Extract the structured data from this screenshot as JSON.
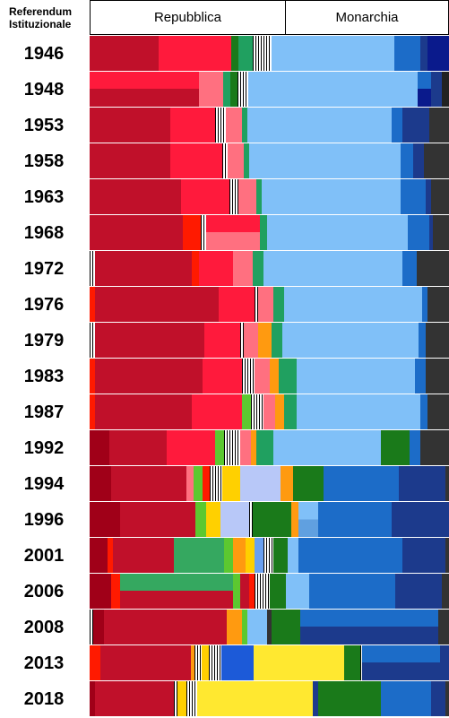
{
  "header": {
    "corner_line1": "Referendum",
    "corner_line2": "Istituzionale",
    "left_label": "Repubblica",
    "right_label": "Monarchia"
  },
  "chart_data": {
    "type": "bar",
    "orientation": "horizontal-stacked",
    "title": "",
    "xlim": [
      0,
      100
    ],
    "referendum_split_percent": 54.3,
    "categories": [
      "1946",
      "1948",
      "1953",
      "1958",
      "1963",
      "1968",
      "1972",
      "1976",
      "1979",
      "1983",
      "1987",
      "1992",
      "1994",
      "1996",
      "2001",
      "2006",
      "2008",
      "2013",
      "2018"
    ],
    "rows": [
      {
        "year": "1946",
        "top": [
          [
            19,
            "#c0102a"
          ],
          [
            20,
            "#ff1a3c"
          ],
          [
            2,
            "#1a7a1a"
          ],
          [
            4,
            "#20a060"
          ],
          [
            5,
            "stripe"
          ],
          [
            34,
            "#80c0f8"
          ],
          [
            7,
            "#1c6cc8"
          ],
          [
            2,
            "#1c3a8c"
          ],
          [
            6,
            "#0a1a8c"
          ]
        ]
      },
      {
        "year": "1948",
        "top": [
          [
            31,
            "#ff1a3c"
          ],
          [
            7,
            "#ff7080"
          ],
          [
            2,
            "#20a060"
          ],
          [
            2,
            "#1a7a1a"
          ],
          [
            3,
            "stripe"
          ],
          [
            48,
            "#80c0f8"
          ],
          [
            4,
            "#1c6cc8"
          ],
          [
            3,
            "#1c3a8c"
          ],
          [
            2,
            "#222222"
          ]
        ],
        "bottom": [
          [
            31,
            "#c0102a"
          ],
          [
            7,
            "#ff7080"
          ],
          [
            2,
            "#20a060"
          ],
          [
            2,
            "#1a7a1a"
          ],
          [
            3,
            "stripe"
          ],
          [
            48,
            "#80c0f8"
          ],
          [
            4,
            "#0a1a8c"
          ],
          [
            3,
            "#1c3a8c"
          ],
          [
            2,
            "#222222"
          ]
        ]
      },
      {
        "year": "1953",
        "top": [
          [
            22.5,
            "#c0102a"
          ],
          [
            12.5,
            "#ff1a3c"
          ],
          [
            3,
            "stripe"
          ],
          [
            4.5,
            "#ff7080"
          ],
          [
            1.5,
            "#20a060"
          ],
          [
            40,
            "#80c0f8"
          ],
          [
            3,
            "#1c6cc8"
          ],
          [
            7.5,
            "#1c3a8c"
          ],
          [
            5.5,
            "#333333"
          ]
        ]
      },
      {
        "year": "1958",
        "top": [
          [
            22.5,
            "#c0102a"
          ],
          [
            14.5,
            "#ff1a3c"
          ],
          [
            1.5,
            "stripe"
          ],
          [
            4.5,
            "#ff7080"
          ],
          [
            1.5,
            "#20a060"
          ],
          [
            42,
            "#80c0f8"
          ],
          [
            3.5,
            "#1c6cc8"
          ],
          [
            3,
            "#1c3a8c"
          ],
          [
            7,
            "#333333"
          ]
        ]
      },
      {
        "year": "1963",
        "top": [
          [
            25.5,
            "#c0102a"
          ],
          [
            13.5,
            "#ff1a3c"
          ],
          [
            2.5,
            "stripe"
          ],
          [
            5,
            "#ff7080"
          ],
          [
            1.5,
            "#20a060"
          ],
          [
            38.5,
            "#80c0f8"
          ],
          [
            7,
            "#1c6cc8"
          ],
          [
            1.5,
            "#1c3a8c"
          ],
          [
            5,
            "#333333"
          ]
        ]
      },
      {
        "year": "1968",
        "top": [
          [
            26,
            "#c0102a"
          ],
          [
            5,
            "#ff1a00"
          ],
          [
            1.5,
            "stripe"
          ],
          [
            15,
            "#ff1a3c"
          ],
          [
            2,
            "#20a060"
          ],
          [
            39,
            "#80c0f8"
          ],
          [
            6,
            "#1c6cc8"
          ],
          [
            1,
            "#1c3a8c"
          ],
          [
            4.5,
            "#333333"
          ]
        ],
        "bottom": [
          [
            26,
            "#c0102a"
          ],
          [
            5,
            "#ff1a00"
          ],
          [
            1.5,
            "stripe"
          ],
          [
            15,
            "#ff7080"
          ],
          [
            2,
            "#20a060"
          ],
          [
            39,
            "#80c0f8"
          ],
          [
            6,
            "#1c6cc8"
          ],
          [
            1,
            "#1c3a8c"
          ],
          [
            4.5,
            "#333333"
          ]
        ]
      },
      {
        "year": "1972",
        "top": [
          [
            1.5,
            "stripe"
          ],
          [
            27,
            "#c0102a"
          ],
          [
            2,
            "#ff1a00"
          ],
          [
            9.5,
            "#ff1a3c"
          ],
          [
            5.5,
            "#ff7080"
          ],
          [
            3,
            "#20a060"
          ],
          [
            38.5,
            "#80c0f8"
          ],
          [
            4,
            "#1c6cc8"
          ],
          [
            9,
            "#333333"
          ]
        ]
      },
      {
        "year": "1976",
        "top": [
          [
            1.5,
            "#ff1a00"
          ],
          [
            34.5,
            "#c0102a"
          ],
          [
            10,
            "#ff1a3c"
          ],
          [
            1,
            "stripe"
          ],
          [
            4,
            "#ff7080"
          ],
          [
            3,
            "#20a060"
          ],
          [
            38.5,
            "#80c0f8"
          ],
          [
            1.5,
            "#1c6cc8"
          ],
          [
            6,
            "#333333"
          ]
        ]
      },
      {
        "year": "1979",
        "top": [
          [
            1.5,
            "stripe"
          ],
          [
            30.5,
            "#c0102a"
          ],
          [
            10,
            "#ff1a3c"
          ],
          [
            1,
            "stripe"
          ],
          [
            4,
            "#ff7080"
          ],
          [
            3.5,
            "#ff9a10"
          ],
          [
            3,
            "#20a060"
          ],
          [
            38,
            "#80c0f8"
          ],
          [
            2,
            "#1c6cc8"
          ],
          [
            6.5,
            "#333333"
          ]
        ]
      },
      {
        "year": "1983",
        "top": [
          [
            1.5,
            "#ff1a00"
          ],
          [
            30,
            "#c0102a"
          ],
          [
            11,
            "#ff1a3c"
          ],
          [
            3.5,
            "stripe"
          ],
          [
            4,
            "#ff7080"
          ],
          [
            2.5,
            "#ff9a10"
          ],
          [
            5,
            "#20a060"
          ],
          [
            33,
            "#80c0f8"
          ],
          [
            3,
            "#1c6cc8"
          ],
          [
            6.5,
            "#333333"
          ]
        ]
      },
      {
        "year": "1987",
        "top": [
          [
            1.5,
            "#ff1a00"
          ],
          [
            27,
            "#c0102a"
          ],
          [
            14,
            "#ff1a3c"
          ],
          [
            2.5,
            "#5cc830"
          ],
          [
            3.5,
            "stripe"
          ],
          [
            3,
            "#ff7080"
          ],
          [
            2.5,
            "#ff9a10"
          ],
          [
            3.5,
            "#20a060"
          ],
          [
            34.5,
            "#80c0f8"
          ],
          [
            2,
            "#1c6cc8"
          ],
          [
            6,
            "#333333"
          ]
        ]
      },
      {
        "year": "1992",
        "top": [
          [
            5.5,
            "#a00018"
          ],
          [
            16,
            "#c0102a"
          ],
          [
            13.5,
            "#ff1a3c"
          ],
          [
            2.5,
            "#5cc830"
          ],
          [
            4.5,
            "stripe"
          ],
          [
            3,
            "#ff7080"
          ],
          [
            1.5,
            "#ff9a10"
          ],
          [
            4.5,
            "#20a060"
          ],
          [
            30,
            "#80c0f8"
          ],
          [
            8,
            "#1a7a1a"
          ],
          [
            3,
            "#1c6cc8"
          ],
          [
            8,
            "#333333"
          ]
        ]
      },
      {
        "year": "1994",
        "top": [
          [
            6,
            "#a00018"
          ],
          [
            21,
            "#c0102a"
          ],
          [
            2,
            "#ff7080"
          ],
          [
            2.5,
            "#5cc830"
          ],
          [
            2,
            "#ff1a00"
          ],
          [
            3.5,
            "stripe"
          ],
          [
            5,
            "#ffd000"
          ],
          [
            11,
            "#b8c8f8"
          ],
          [
            3.5,
            "#ff9a10"
          ],
          [
            8.5,
            "#1a7a1a"
          ],
          [
            21,
            "#1c6cc8"
          ],
          [
            13,
            "#1c3a8c"
          ],
          [
            1,
            "#333333"
          ]
        ]
      },
      {
        "year": "1996",
        "top": [
          [
            8.5,
            "#a00018"
          ],
          [
            21,
            "#c0102a"
          ],
          [
            3,
            "#5cc830"
          ],
          [
            4,
            "#ffd000"
          ],
          [
            8,
            "#b8c8f8"
          ],
          [
            1,
            "stripe"
          ],
          [
            10.5,
            "#1a7a1a"
          ],
          [
            2,
            "#ff9a10"
          ],
          [
            5.5,
            "#80c0f8"
          ],
          [
            20.5,
            "#1c6cc8"
          ],
          [
            16,
            "#1c3a8c"
          ]
        ],
        "splits": {
          "8": [
            "#80c0f8",
            "#60a0e0"
          ]
        }
      },
      {
        "year": "2001",
        "top": [
          [
            5,
            "#a00018"
          ],
          [
            1.5,
            "#ff1a00"
          ],
          [
            17,
            "#c0102a"
          ],
          [
            14,
            "#35a860"
          ],
          [
            2.5,
            "#5cc830"
          ],
          [
            3.5,
            "#ff9a10"
          ],
          [
            2.5,
            "#ffd000"
          ],
          [
            2.5,
            "#6aa0f0"
          ],
          [
            2.5,
            "stripe"
          ],
          [
            4,
            "#1a7a1a"
          ],
          [
            3,
            "#80c0f8"
          ],
          [
            29,
            "#1c6cc8"
          ],
          [
            12,
            "#1c3a8c"
          ],
          [
            1,
            "#333333"
          ]
        ]
      },
      {
        "year": "2006",
        "top": [
          [
            6,
            "#a00018"
          ],
          [
            2.5,
            "#ff1a00"
          ],
          [
            31.5,
            "#35a860"
          ],
          [
            2,
            "#5cc830"
          ],
          [
            2.5,
            "#c0102a"
          ],
          [
            1.5,
            "#ff1a00"
          ],
          [
            4,
            "stripe"
          ],
          [
            4.5,
            "#1a7a1a"
          ],
          [
            6.5,
            "#80c0f8"
          ],
          [
            24,
            "#1c6cc8"
          ],
          [
            13,
            "#1c3a8c"
          ],
          [
            2,
            "#333333"
          ]
        ],
        "bottom": [
          [
            6,
            "#a00018"
          ],
          [
            2.5,
            "#ff1a00"
          ],
          [
            31.5,
            "#c0102a"
          ],
          [
            2,
            "#5cc830"
          ],
          [
            2.5,
            "#c0102a"
          ],
          [
            1.5,
            "#ff1a00"
          ],
          [
            4,
            "stripe"
          ],
          [
            4.5,
            "#1a7a1a"
          ],
          [
            6.5,
            "#80c0f8"
          ],
          [
            24,
            "#1c6cc8"
          ],
          [
            13,
            "#1c3a8c"
          ],
          [
            2,
            "#333333"
          ]
        ]
      },
      {
        "year": "2008",
        "top": [
          [
            1,
            "stripe"
          ],
          [
            3,
            "#a00018"
          ],
          [
            33.5,
            "#c0102a"
          ],
          [
            4,
            "#ff9a10"
          ],
          [
            1.5,
            "#5cc830"
          ],
          [
            5.5,
            "#80c0f8"
          ],
          [
            1,
            "#333333"
          ],
          [
            8,
            "#1a7a1a"
          ],
          [
            37.5,
            "#1c6cc8"
          ],
          [
            3,
            "#333333"
          ]
        ],
        "bottom": [
          [
            1,
            "stripe"
          ],
          [
            3,
            "#a00018"
          ],
          [
            33.5,
            "#c0102a"
          ],
          [
            4,
            "#ff9a10"
          ],
          [
            1.5,
            "#5cc830"
          ],
          [
            5.5,
            "#80c0f8"
          ],
          [
            1,
            "#333333"
          ],
          [
            8,
            "#1a7a1a"
          ],
          [
            37.5,
            "#1c3a8c"
          ],
          [
            3,
            "#333333"
          ]
        ]
      },
      {
        "year": "2013",
        "top": [
          [
            3,
            "#ff1a00"
          ],
          [
            25.5,
            "#c0102a"
          ],
          [
            1,
            "#ff9a10"
          ],
          [
            2,
            "stripe"
          ],
          [
            2,
            "#ffd000"
          ],
          [
            3.5,
            "stripe"
          ],
          [
            9,
            "#1c5ad8"
          ],
          [
            25.5,
            "#ffe830"
          ],
          [
            4.5,
            "#1a7a1a"
          ],
          [
            0.5,
            "stripe"
          ],
          [
            22,
            "#1c6cc8"
          ],
          [
            2.5,
            "#1c3a8c"
          ]
        ],
        "bottom": [
          [
            3,
            "#ff1a00"
          ],
          [
            25.5,
            "#c0102a"
          ],
          [
            1,
            "#ff9a10"
          ],
          [
            2,
            "stripe"
          ],
          [
            2,
            "#ffd000"
          ],
          [
            3.5,
            "stripe"
          ],
          [
            9,
            "#1c5ad8"
          ],
          [
            25.5,
            "#ffe830"
          ],
          [
            4.5,
            "#1a7a1a"
          ],
          [
            0.5,
            "stripe"
          ],
          [
            22,
            "#1c3a8c"
          ],
          [
            2.5,
            "#1c3a8c"
          ]
        ]
      },
      {
        "year": "2018",
        "top": [
          [
            1.5,
            "#a00018"
          ],
          [
            3,
            "#c0102a"
          ],
          [
            19,
            "#c0102a"
          ],
          [
            1,
            "stripe"
          ],
          [
            2.5,
            "#ffd000"
          ],
          [
            3,
            "stripe"
          ],
          [
            32,
            "#ffe830"
          ],
          [
            1.5,
            "#1c3a8c"
          ],
          [
            17.5,
            "#1a7a1a"
          ],
          [
            14,
            "#1c6cc8"
          ],
          [
            4,
            "#1c3a8c"
          ],
          [
            1,
            "#333333"
          ]
        ]
      }
    ]
  }
}
